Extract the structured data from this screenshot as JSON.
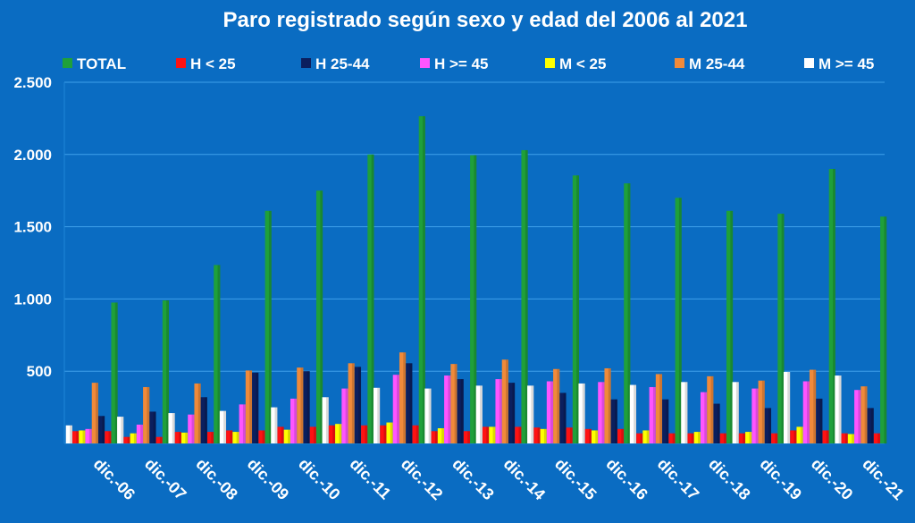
{
  "chart_data": {
    "type": "bar",
    "title": "Paro registrado según sexo y edad del 2006 al 2021",
    "categories": [
      "dic.-06",
      "dic.-07",
      "dic.-08",
      "dic.-09",
      "dic.-10",
      "dic.-11",
      "dic.-12",
      "dic.-13",
      "dic.-14",
      "dic.-15",
      "dic.-16",
      "dic.-17",
      "dic.-18",
      "dic.-19",
      "dic.-20",
      "dic.-21"
    ],
    "ylim": [
      0,
      2500
    ],
    "yticks": [
      {
        "value": 500,
        "label": "500"
      },
      {
        "value": 1000,
        "label": "1.000"
      },
      {
        "value": 1500,
        "label": "1.500"
      },
      {
        "value": 2000,
        "label": "2.000"
      },
      {
        "value": 2500,
        "label": "2.500"
      }
    ],
    "grid": true,
    "legend_position": "top",
    "series": [
      {
        "name": "TOTAL",
        "color": "#1fa03a",
        "values": [
          975,
          990,
          1235,
          1610,
          1750,
          2000,
          2265,
          1995,
          2030,
          1855,
          1800,
          1700,
          1610,
          1590,
          1900,
          1570
        ]
      },
      {
        "name": "H < 25",
        "color": "#ff1212",
        "values": [
          85,
          45,
          80,
          90,
          115,
          125,
          125,
          85,
          115,
          110,
          100,
          70,
          70,
          70,
          90,
          70
        ]
      },
      {
        "name": "H 25-44",
        "color": "#0b1f5e",
        "values": [
          190,
          220,
          320,
          490,
          500,
          530,
          555,
          445,
          420,
          350,
          305,
          305,
          275,
          245,
          310,
          245
        ]
      },
      {
        "name": "H >= 45",
        "color": "#ff55ff",
        "values": [
          100,
          130,
          200,
          270,
          310,
          380,
          475,
          470,
          445,
          430,
          425,
          390,
          355,
          380,
          430,
          370
        ]
      },
      {
        "name": "M < 25",
        "color": "#ffff00",
        "values": [
          90,
          70,
          75,
          80,
          95,
          135,
          145,
          105,
          115,
          100,
          90,
          90,
          80,
          80,
          115,
          65
        ]
      },
      {
        "name": "M 25-44",
        "color": "#f08a3a",
        "values": [
          420,
          390,
          415,
          505,
          525,
          555,
          630,
          550,
          580,
          515,
          520,
          480,
          465,
          435,
          510,
          395
        ]
      },
      {
        "name": "M >= 45",
        "color": "#ffffff",
        "values": [
          125,
          185,
          210,
          225,
          250,
          320,
          385,
          380,
          400,
          400,
          415,
          405,
          425,
          425,
          495,
          470
        ]
      }
    ],
    "bar_order": [
      "M >= 45",
      "H < 25",
      "M < 25",
      "H >= 45",
      "M 25-44",
      "H 25-44",
      "H < 25",
      "TOTAL"
    ]
  }
}
